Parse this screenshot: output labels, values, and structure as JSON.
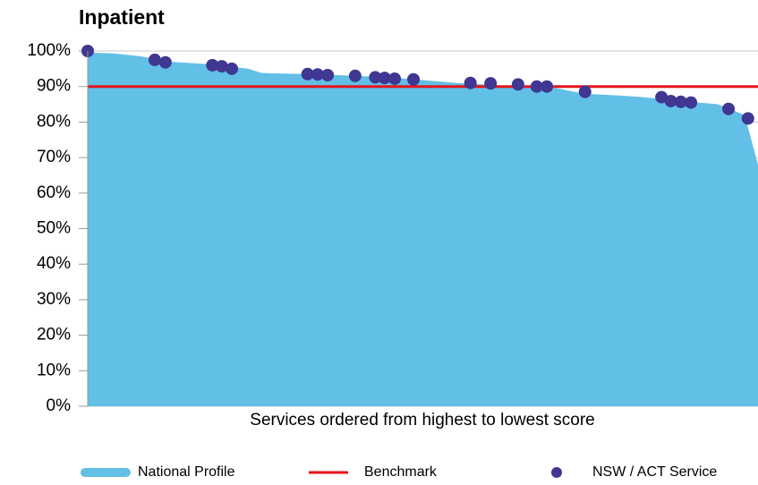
{
  "chart_data": {
    "type": "combo",
    "title": "Inpatient",
    "x_label": "Services ordered from highest to lowest score",
    "xlim": [
      0,
      100
    ],
    "ylim": [
      0,
      100
    ],
    "yticks": [
      {
        "value": 0,
        "label": "0%"
      },
      {
        "value": 10,
        "label": "10%"
      },
      {
        "value": 20,
        "label": "20%"
      },
      {
        "value": 30,
        "label": "30%"
      },
      {
        "value": 40,
        "label": "40%"
      },
      {
        "value": 50,
        "label": "50%"
      },
      {
        "value": 60,
        "label": "60%"
      },
      {
        "value": 70,
        "label": "70%"
      },
      {
        "value": 80,
        "label": "80%"
      },
      {
        "value": 90,
        "label": "90%"
      },
      {
        "value": 100,
        "label": "100%"
      }
    ],
    "grid": true,
    "legend": "bottom",
    "series": [
      {
        "name": "National Profile",
        "type": "area",
        "color": "#62bfe6",
        "x": [
          0,
          4,
          8,
          12,
          18,
          24,
          26,
          35,
          45,
          55,
          65,
          70,
          74,
          79,
          83,
          88,
          94,
          98,
          100
        ],
        "values": [
          99.6,
          99.3,
          98.5,
          97,
          96.3,
          95,
          93.8,
          93.4,
          92.6,
          91,
          90,
          89.5,
          88,
          87.5,
          87,
          86,
          85,
          82,
          68
        ]
      },
      {
        "name": "Benchmark",
        "type": "hline",
        "color": "#e8141a",
        "value": 90
      },
      {
        "name": "NSW / ACT Service",
        "type": "scatter",
        "color": "#3f3791",
        "x": [
          0,
          10,
          11.6,
          18.6,
          20,
          21.5,
          32.8,
          34.3,
          35.8,
          39.9,
          42.9,
          44.3,
          45.8,
          48.6,
          57.1,
          60.1,
          64.2,
          67,
          68.5,
          74.2,
          85.6,
          87,
          88.5,
          90,
          95.6,
          98.5
        ],
        "values": [
          100,
          97.5,
          96.8,
          96,
          95.7,
          95,
          93.5,
          93.4,
          93.2,
          93,
          92.6,
          92.4,
          92.2,
          92,
          91,
          90.9,
          90.6,
          90,
          90,
          88.5,
          87,
          85.9,
          85.7,
          85.5,
          83.7,
          81
        ]
      }
    ]
  }
}
